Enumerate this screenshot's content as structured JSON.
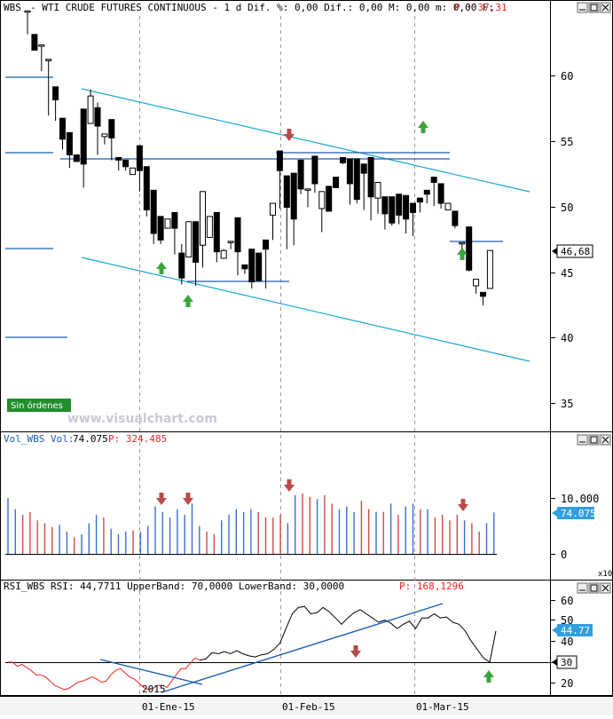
{
  "panels": {
    "price": {
      "header_symbol": "WBS",
      "header_text": "- WTI CRUDE FUTURES CONTINUOUS -  1 d Dif. %: 0,00 Dif.: 0,00 M: 0,00 m: 0,00 F:",
      "header_p": "P : 37,31",
      "last_value": "46,68",
      "y_ticks": [
        "60",
        "55",
        "50",
        "45",
        "40",
        "35"
      ],
      "status_badge": "Sin órdenes",
      "watermark": "www.visualchart.com"
    },
    "volume": {
      "header_label": "Vol_WBS Vol:",
      "header_value": "74.075",
      "header_p": "P: 324.485",
      "last_value": "74.075",
      "y_ticks": [
        "10.000",
        "0"
      ],
      "multiplier": "x10"
    },
    "rsi": {
      "header_text": "RSI_WBS RSI: 44,7711 UpperBand: 70,0000 LowerBand: 30,0000",
      "header_p": "P: 168,1296",
      "last_value": "44.77",
      "band_value": "30",
      "y_ticks": [
        "60",
        "50",
        "40",
        "30",
        "20"
      ],
      "year_label": "2015"
    },
    "x_axis": {
      "ticks": [
        "01-Ene-15",
        "01-Feb-15",
        "01-Mar-15"
      ]
    }
  },
  "colors": {
    "up_arrow": "#3aa53a",
    "down_arrow": "#b94a48",
    "trend": "#19a7d4",
    "vol_blue": "#3b6fd0",
    "vol_red": "#d24a4a",
    "badge": "#1f8f2a",
    "value_box": "#2f9fdf"
  },
  "chart_data": [
    {
      "type": "candlestick",
      "ylim": [
        32.5,
        65
      ],
      "ohlc": [
        [
          65,
          64,
          65,
          63.2
        ],
        [
          63.2,
          62,
          62,
          62.2
        ],
        [
          62.4,
          61.7,
          62.4,
          60.4
        ],
        [
          61.3,
          60.7,
          61.3,
          57
        ],
        [
          59.2,
          59.2,
          58.2,
          56.6
        ],
        [
          56.8,
          56.8,
          55.2,
          54.4
        ],
        [
          55.7,
          55.7,
          54,
          53
        ],
        [
          54,
          54,
          53.5,
          53.9
        ],
        [
          57.5,
          57.5,
          53.3,
          51.5
        ],
        [
          56.4,
          57,
          58.5,
          59
        ],
        [
          57.6,
          58,
          56.2,
          54
        ],
        [
          55.4,
          55.4,
          55.6,
          54.8
        ],
        [
          56.7,
          56.7,
          55.3,
          53.6
        ],
        [
          53.8,
          53.8,
          53.6,
          52.8
        ],
        [
          53.6,
          53.6,
          53.1,
          52.8
        ],
        [
          52.5,
          52.5,
          53,
          53
        ],
        [
          54.7,
          54.7,
          52.8,
          51.2
        ],
        [
          53.1,
          53.1,
          49.8,
          49.3
        ],
        [
          51.3,
          51.3,
          48,
          47.2
        ],
        [
          49.3,
          49.3,
          47.5,
          47.2
        ],
        [
          48.4,
          48.4,
          49.1,
          48.8
        ],
        [
          49.6,
          49.6,
          48.4,
          46.4
        ],
        [
          46.5,
          47.2,
          44.6,
          44.1
        ],
        [
          46.2,
          46.2,
          48.9,
          48.9
        ],
        [
          48.9,
          48.9,
          45.8,
          44
        ],
        [
          47.1,
          47.1,
          51.2,
          45.4
        ],
        [
          47.7,
          47.7,
          49.3,
          49.3
        ],
        [
          49.6,
          49.6,
          46.6,
          45.8
        ],
        [
          46.1,
          46.1,
          46.7,
          46.8
        ],
        [
          47.3,
          47.3,
          47.4,
          46.8
        ],
        [
          49.2,
          49.2,
          46.6,
          44.8
        ],
        [
          45.6,
          45.6,
          45.3,
          44.9
        ],
        [
          46.8,
          46.8,
          44.3,
          43.8
        ],
        [
          46.5,
          46.5,
          44.4,
          44.3
        ],
        [
          47.5,
          47.5,
          46.8,
          43.8
        ],
        [
          49.4,
          49.4,
          50.3,
          47.5
        ],
        [
          54.3,
          54.3,
          52.8,
          49.9
        ],
        [
          52.4,
          52.4,
          50,
          46.8
        ],
        [
          52.6,
          52.6,
          49.1,
          47.1
        ],
        [
          53.6,
          53.6,
          51.4,
          51
        ],
        [
          51.4,
          51.4,
          51.4,
          50
        ],
        [
          53.9,
          53.9,
          51.8,
          51.1
        ],
        [
          49.9,
          49.9,
          51.2,
          48.1
        ],
        [
          51.6,
          51.6,
          49.7,
          49.7
        ],
        [
          52.3,
          52.3,
          51.5,
          52
        ],
        [
          53.8,
          53.8,
          53.4,
          53.3
        ],
        [
          53.7,
          53.7,
          51.8,
          50.2
        ],
        [
          53.7,
          53.7,
          50.6,
          50.3
        ],
        [
          53.3,
          53.3,
          52.6,
          49.8
        ],
        [
          53.8,
          53.8,
          50.8,
          49
        ],
        [
          50.7,
          50.7,
          51.9,
          49.5
        ],
        [
          50.8,
          50.8,
          49.5,
          48.3
        ],
        [
          50.8,
          50.8,
          48.8,
          48.6
        ],
        [
          51,
          51,
          49.4,
          48.7
        ],
        [
          50.9,
          50.9,
          49.1,
          48
        ],
        [
          50.3,
          50.3,
          49.6,
          47.8
        ],
        [
          50.7,
          50.7,
          50.4,
          49.6
        ],
        [
          51.3,
          51.3,
          51,
          50.3
        ],
        [
          52.3,
          52.3,
          51.9,
          50.1
        ],
        [
          51.8,
          51.8,
          50.3,
          49.9
        ],
        [
          49.8,
          49.8,
          50.3,
          49.9
        ],
        [
          49.7,
          49.7,
          48.6,
          48.4
        ],
        [
          47.2,
          47.2,
          47.3,
          46.7
        ],
        [
          48.5,
          48.5,
          45.2,
          45.1
        ],
        [
          44,
          44,
          44.5,
          43.4
        ],
        [
          43.5,
          43.5,
          43.2,
          42.5
        ],
        [
          43.8,
          43.8,
          46.7,
          46.7
        ]
      ]
    },
    {
      "type": "bar",
      "ylim": [
        0,
        15000
      ],
      "values": [
        {
          "v": 10000,
          "c": "blue"
        },
        {
          "v": 8000,
          "c": "blue"
        },
        {
          "v": 7000,
          "c": "red"
        },
        {
          "v": 7500,
          "c": "red"
        },
        {
          "v": 6000,
          "c": "red"
        },
        {
          "v": 5500,
          "c": "red"
        },
        {
          "v": 4800,
          "c": "red"
        },
        {
          "v": 5200,
          "c": "blue"
        },
        {
          "v": 4000,
          "c": "blue"
        },
        {
          "v": 3000,
          "c": "red"
        },
        {
          "v": 3500,
          "c": "blue"
        },
        {
          "v": 5500,
          "c": "blue"
        },
        {
          "v": 7000,
          "c": "blue"
        },
        {
          "v": 6500,
          "c": "red"
        },
        {
          "v": 4500,
          "c": "blue"
        },
        {
          "v": 3500,
          "c": "blue"
        },
        {
          "v": 4000,
          "c": "blue"
        },
        {
          "v": 4200,
          "c": "red"
        },
        {
          "v": 4000,
          "c": "blue"
        },
        {
          "v": 5000,
          "c": "blue"
        },
        {
          "v": 8500,
          "c": "blue"
        },
        {
          "v": 7500,
          "c": "blue"
        },
        {
          "v": 6500,
          "c": "blue"
        },
        {
          "v": 8000,
          "c": "blue"
        },
        {
          "v": 7000,
          "c": "blue"
        },
        {
          "v": 9000,
          "c": "blue"
        },
        {
          "v": 5000,
          "c": "blue"
        },
        {
          "v": 4000,
          "c": "red"
        },
        {
          "v": 3500,
          "c": "red"
        },
        {
          "v": 6000,
          "c": "blue"
        },
        {
          "v": 7000,
          "c": "blue"
        },
        {
          "v": 8000,
          "c": "blue"
        },
        {
          "v": 7500,
          "c": "blue"
        },
        {
          "v": 8000,
          "c": "blue"
        },
        {
          "v": 7500,
          "c": "red"
        },
        {
          "v": 6500,
          "c": "red"
        },
        {
          "v": 6500,
          "c": "red"
        },
        {
          "v": 7000,
          "c": "red"
        },
        {
          "v": 5500,
          "c": "blue"
        },
        {
          "v": 10500,
          "c": "blue"
        },
        {
          "v": 10800,
          "c": "red"
        },
        {
          "v": 10200,
          "c": "red"
        },
        {
          "v": 9800,
          "c": "blue"
        },
        {
          "v": 10500,
          "c": "red"
        },
        {
          "v": 9000,
          "c": "red"
        },
        {
          "v": 8000,
          "c": "blue"
        },
        {
          "v": 8500,
          "c": "blue"
        },
        {
          "v": 7500,
          "c": "blue"
        },
        {
          "v": 9500,
          "c": "red"
        },
        {
          "v": 8000,
          "c": "red"
        },
        {
          "v": 7500,
          "c": "blue"
        },
        {
          "v": 7500,
          "c": "red"
        },
        {
          "v": 9000,
          "c": "blue"
        },
        {
          "v": 7000,
          "c": "red"
        },
        {
          "v": 8500,
          "c": "blue"
        },
        {
          "v": 9000,
          "c": "blue"
        },
        {
          "v": 8000,
          "c": "red"
        },
        {
          "v": 8000,
          "c": "blue"
        },
        {
          "v": 6500,
          "c": "red"
        },
        {
          "v": 7000,
          "c": "red"
        },
        {
          "v": 6000,
          "c": "red"
        },
        {
          "v": 7000,
          "c": "red"
        },
        {
          "v": 6000,
          "c": "blue"
        },
        {
          "v": 5500,
          "c": "red"
        },
        {
          "v": 4000,
          "c": "red"
        },
        {
          "v": 5500,
          "c": "blue"
        },
        {
          "v": 7400,
          "c": "blue"
        }
      ]
    },
    {
      "type": "line",
      "ylim": [
        10,
        65
      ],
      "series": [
        {
          "color": "red",
          "values": [
            30,
            30,
            28,
            29,
            27.5,
            26,
            24,
            24,
            23,
            21,
            19,
            18,
            17,
            17.5,
            19,
            20.5,
            21,
            22,
            23,
            22,
            20.5,
            21,
            24,
            26,
            27,
            25,
            23,
            22,
            20,
            18,
            17,
            17.5,
            19,
            19,
            18,
            21,
            24,
            27,
            27,
            29.5,
            32,
            31
          ]
        },
        {
          "color": "black",
          "values": [
            31,
            31.5,
            34.5,
            34,
            35,
            34,
            35.5,
            34,
            33,
            32.5,
            33.5,
            34,
            36,
            39,
            46,
            53,
            56,
            56.5,
            53,
            53.5,
            56,
            54,
            51,
            48,
            51,
            53.5,
            55,
            53,
            51,
            49,
            50,
            48.5,
            46,
            48,
            49.5,
            46,
            51,
            51,
            53,
            51,
            51.5,
            49,
            48,
            45,
            40,
            36,
            32,
            30,
            44.8
          ]
        }
      ]
    }
  ]
}
